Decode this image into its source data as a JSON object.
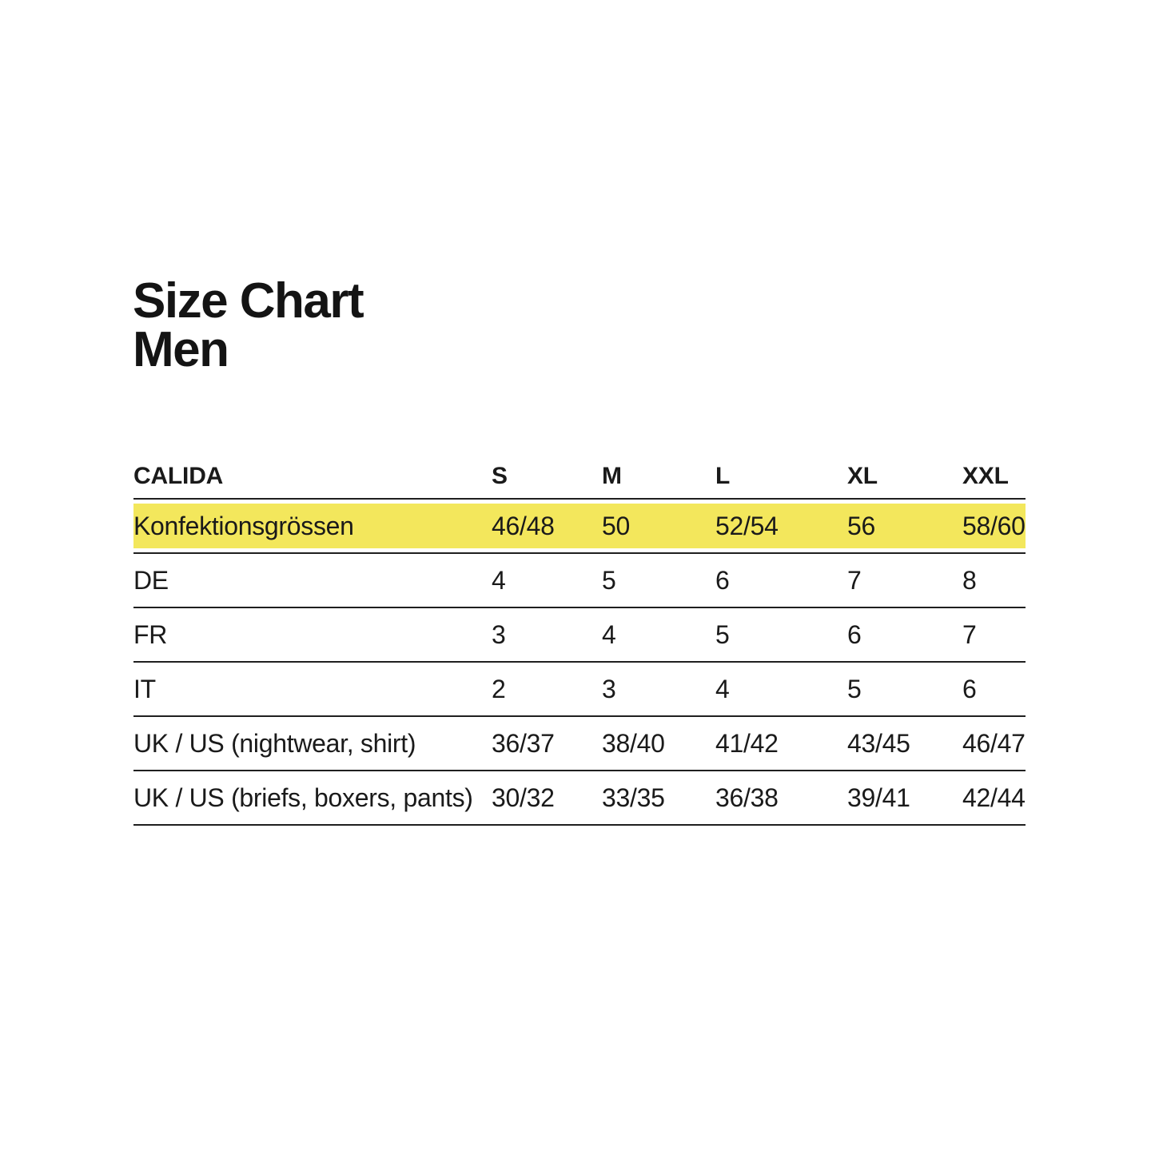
{
  "page": {
    "background": "#ffffff",
    "title": {
      "line1": "Size Chart",
      "line2": "Men"
    }
  },
  "size_table": {
    "brand": "CALIDA",
    "columns": [
      "CALIDA",
      "S",
      "M",
      "L",
      "XL",
      "XXL"
    ],
    "rows": [
      {
        "label": "Konfektionsgrössen",
        "values": [
          "46/48",
          "50",
          "52/54",
          "56",
          "58/60"
        ],
        "highlighted": true
      },
      {
        "label": "DE",
        "values": [
          "4",
          "5",
          "6",
          "7",
          "8"
        ],
        "highlighted": false
      },
      {
        "label": "FR",
        "values": [
          "3",
          "4",
          "5",
          "6",
          "7"
        ],
        "highlighted": false
      },
      {
        "label": "IT",
        "values": [
          "2",
          "3",
          "4",
          "5",
          "6"
        ],
        "highlighted": false
      },
      {
        "label": "UK / US (nightwear, shirt)",
        "values": [
          "36/37",
          "38/40",
          "41/42",
          "43/45",
          "46/47"
        ],
        "highlighted": false
      },
      {
        "label": "UK / US (briefs, boxers, pants)",
        "values": [
          "30/32",
          "33/35",
          "36/38",
          "39/41",
          "42/44"
        ],
        "highlighted": false
      }
    ],
    "highlight_color": "#F3E75C",
    "rule_color": "#1f1f1f",
    "text_color": "#1a1a1a"
  }
}
